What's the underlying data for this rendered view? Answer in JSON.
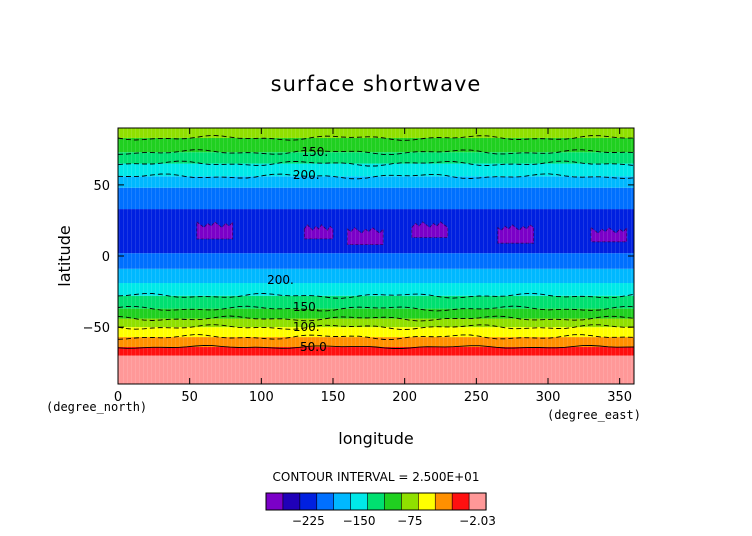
{
  "chart_data": {
    "type": "heatmap",
    "title": "surface shortwave",
    "xlabel": "longitude",
    "ylabel": "latitude",
    "x_unit": "(degree_east)",
    "y_unit": "(degree_north)",
    "xlim": [
      0,
      360
    ],
    "ylim": [
      -90,
      90
    ],
    "x_ticks": [
      0,
      50,
      100,
      150,
      200,
      250,
      300,
      350
    ],
    "y_ticks": [
      -50,
      0,
      50
    ],
    "contour_interval_text": "CONTOUR INTERVAL = 2.500E+01",
    "colorbar": {
      "tick_labels": [
        "−225",
        "−150",
        "−75",
        "−2.03"
      ],
      "colors": [
        "#7b00c8",
        "#2000b8",
        "#0020e0",
        "#0070ff",
        "#00b8ff",
        "#00e8e8",
        "#00e070",
        "#20d020",
        "#90e000",
        "#ffff00",
        "#ff9000",
        "#ff1010",
        "#ff9898"
      ]
    },
    "latitude_bands": [
      {
        "lat": [
          -90,
          -70
        ],
        "value": 12.5,
        "color": "#ff9898"
      },
      {
        "lat": [
          -70,
          -64
        ],
        "value": 37.5,
        "color": "#ff1010"
      },
      {
        "lat": [
          -64,
          -57
        ],
        "value": 62.5,
        "color": "#ff9000"
      },
      {
        "lat": [
          -57,
          -50
        ],
        "value": 87.5,
        "color": "#ffff00"
      },
      {
        "lat": [
          -50,
          -44
        ],
        "value": 112.5,
        "color": "#90e000"
      },
      {
        "lat": [
          -44,
          -37
        ],
        "value": 137.5,
        "color": "#20d020"
      },
      {
        "lat": [
          -37,
          -28
        ],
        "value": 162.5,
        "color": "#00e070"
      },
      {
        "lat": [
          -28,
          -19
        ],
        "value": 187.5,
        "color": "#00e8e8"
      },
      {
        "lat": [
          -19,
          -9
        ],
        "value": 212.5,
        "color": "#00b8ff"
      },
      {
        "lat": [
          -9,
          2
        ],
        "value": 237.5,
        "color": "#0070ff"
      },
      {
        "lat": [
          2,
          33
        ],
        "value": 262.5,
        "color": "#0020e0"
      },
      {
        "lat": [
          33,
          48
        ],
        "value": 237.5,
        "color": "#0070ff"
      },
      {
        "lat": [
          48,
          56
        ],
        "value": 212.5,
        "color": "#00b8ff"
      },
      {
        "lat": [
          56,
          65
        ],
        "value": 187.5,
        "color": "#00e8e8"
      },
      {
        "lat": [
          65,
          73
        ],
        "value": 162.5,
        "color": "#00e070"
      },
      {
        "lat": [
          73,
          83
        ],
        "value": 137.5,
        "color": "#20d020"
      },
      {
        "lat": [
          83,
          90
        ],
        "value": 112.5,
        "color": "#90e000"
      }
    ],
    "high_patches": [
      {
        "lon": [
          55,
          80
        ],
        "lat": [
          10,
          22
        ],
        "color": "#7b00c8"
      },
      {
        "lon": [
          130,
          150
        ],
        "lat": [
          12,
          20
        ],
        "color": "#7b00c8"
      },
      {
        "lon": [
          160,
          185
        ],
        "lat": [
          10,
          18
        ],
        "color": "#7b00c8"
      },
      {
        "lon": [
          205,
          230
        ],
        "lat": [
          12,
          22
        ],
        "color": "#7b00c8"
      },
      {
        "lon": [
          265,
          290
        ],
        "lat": [
          10,
          20
        ],
        "color": "#7b00c8"
      },
      {
        "lon": [
          330,
          355
        ],
        "lat": [
          8,
          18
        ],
        "color": "#7b00c8"
      }
    ],
    "contour_labels": [
      {
        "text": "150.",
        "lon": 128,
        "lat": 73
      },
      {
        "text": "200.",
        "lon": 122,
        "lat": 57
      },
      {
        "text": "200.",
        "lon": 104,
        "lat": -17
      },
      {
        "text": "150.",
        "lon": 122,
        "lat": -36
      },
      {
        "text": "100.",
        "lon": 122,
        "lat": -50
      },
      {
        "text": "50.0",
        "lon": 127,
        "lat": -64
      }
    ],
    "dashed_contour_lats": [
      83,
      73,
      65,
      56,
      -28,
      -37,
      -44,
      -50,
      -57
    ],
    "solid_contour_lats": [
      -64
    ]
  }
}
